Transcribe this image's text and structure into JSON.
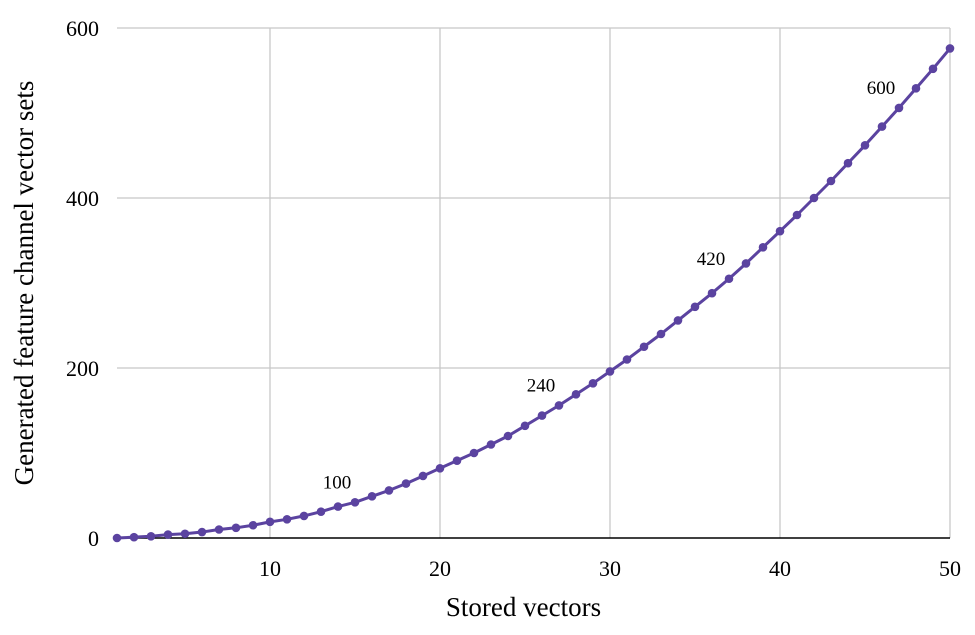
{
  "chart_data": {
    "type": "line",
    "xlabel": "Stored vectors",
    "ylabel": "Generated feature channel vector sets",
    "xlim": [
      1,
      50
    ],
    "ylim": [
      0,
      600
    ],
    "xticks": [
      10,
      20,
      30,
      40,
      50
    ],
    "yticks": [
      0,
      200,
      400,
      600
    ],
    "grid": true,
    "legend": "none",
    "series": [
      {
        "x": [
          1,
          2,
          3,
          4,
          5,
          6,
          7,
          8,
          9,
          10,
          11,
          12,
          13,
          14,
          15,
          16,
          17,
          18,
          19,
          20,
          21,
          22,
          23,
          24,
          25,
          26,
          27,
          28,
          29,
          30,
          31,
          32,
          33,
          34,
          35,
          36,
          37,
          38,
          39,
          40,
          41,
          42,
          43,
          44,
          45,
          46,
          47,
          48,
          49,
          50
        ],
        "values": [
          0,
          1,
          2,
          4,
          5,
          7,
          10,
          12,
          15,
          19,
          22,
          26,
          31,
          37,
          42,
          49,
          56,
          64,
          73,
          82,
          91,
          100,
          110,
          120,
          132,
          144,
          156,
          169,
          182,
          196,
          210,
          225,
          240,
          256,
          272,
          288,
          305,
          323,
          342,
          361,
          380,
          400,
          420,
          441,
          462,
          484,
          506,
          529,
          552,
          576
        ],
        "color": "#5b43a0"
      }
    ],
    "annotations": [
      {
        "x": 15,
        "y": 42,
        "text": "100"
      },
      {
        "x": 27,
        "y": 156,
        "text": "240"
      },
      {
        "x": 37,
        "y": 305,
        "text": "420"
      },
      {
        "x": 47,
        "y": 506,
        "text": "600"
      }
    ]
  }
}
